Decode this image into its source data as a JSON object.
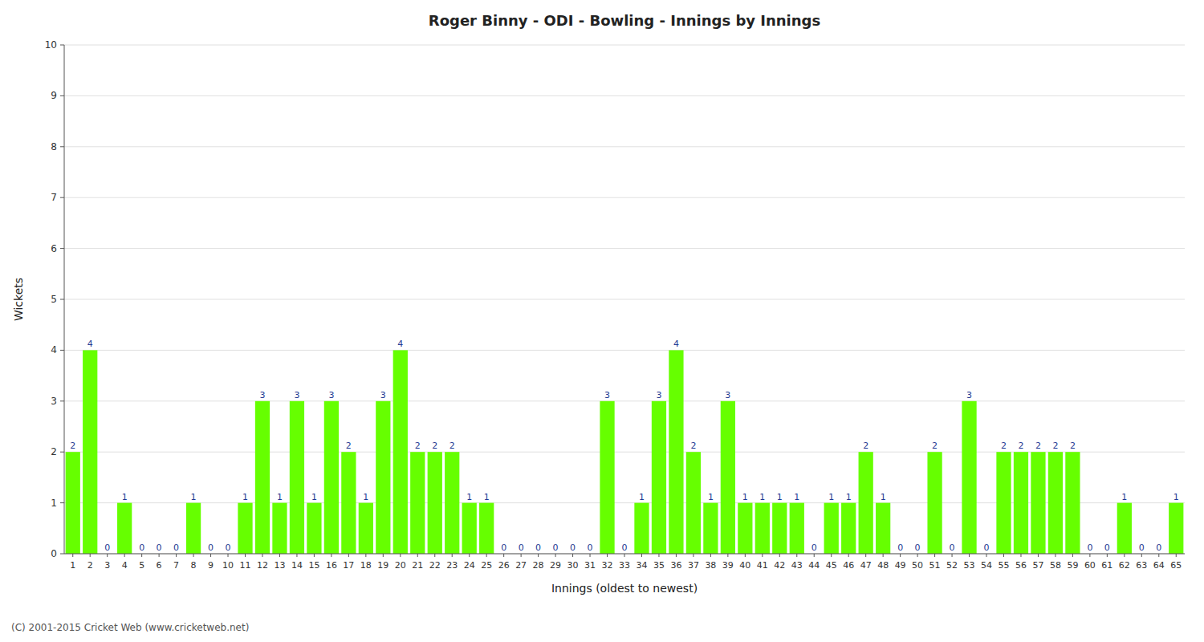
{
  "chart_data": {
    "type": "bar",
    "title": "Roger Binny - ODI - Bowling - Innings by Innings",
    "xlabel": "Innings (oldest to newest)",
    "ylabel": "Wickets",
    "footer": "(C) 2001-2015 Cricket Web (www.cricketweb.net)",
    "color": "#66FF00",
    "categories": [
      "1",
      "2",
      "3",
      "4",
      "5",
      "6",
      "7",
      "8",
      "9",
      "10",
      "11",
      "12",
      "13",
      "14",
      "15",
      "16",
      "17",
      "18",
      "19",
      "20",
      "21",
      "22",
      "23",
      "24",
      "25",
      "26",
      "27",
      "28",
      "29",
      "30",
      "31",
      "32",
      "33",
      "34",
      "35",
      "36",
      "37",
      "38",
      "39",
      "40",
      "41",
      "42",
      "43",
      "44",
      "45",
      "46",
      "47",
      "48",
      "49",
      "50",
      "51",
      "52",
      "53",
      "54",
      "55",
      "56",
      "57",
      "58",
      "59",
      "60",
      "61",
      "62",
      "63",
      "64",
      "65"
    ],
    "values": [
      2,
      4,
      0,
      1,
      0,
      0,
      0,
      1,
      0,
      0,
      1,
      3,
      1,
      3,
      1,
      3,
      2,
      1,
      3,
      4,
      2,
      2,
      2,
      1,
      1,
      0,
      0,
      0,
      0,
      0,
      0,
      3,
      0,
      1,
      3,
      4,
      2,
      1,
      3,
      1,
      1,
      1,
      1,
      0,
      1,
      1,
      2,
      1,
      0,
      0,
      2,
      0,
      3,
      0,
      2,
      2,
      2,
      2,
      2,
      0,
      0,
      1,
      0,
      0,
      1
    ],
    "ylim": [
      0,
      10
    ],
    "yticks": [
      0,
      1,
      2,
      3,
      4,
      5,
      6,
      7,
      8,
      9,
      10
    ],
    "grid": true,
    "data_labels": true
  }
}
